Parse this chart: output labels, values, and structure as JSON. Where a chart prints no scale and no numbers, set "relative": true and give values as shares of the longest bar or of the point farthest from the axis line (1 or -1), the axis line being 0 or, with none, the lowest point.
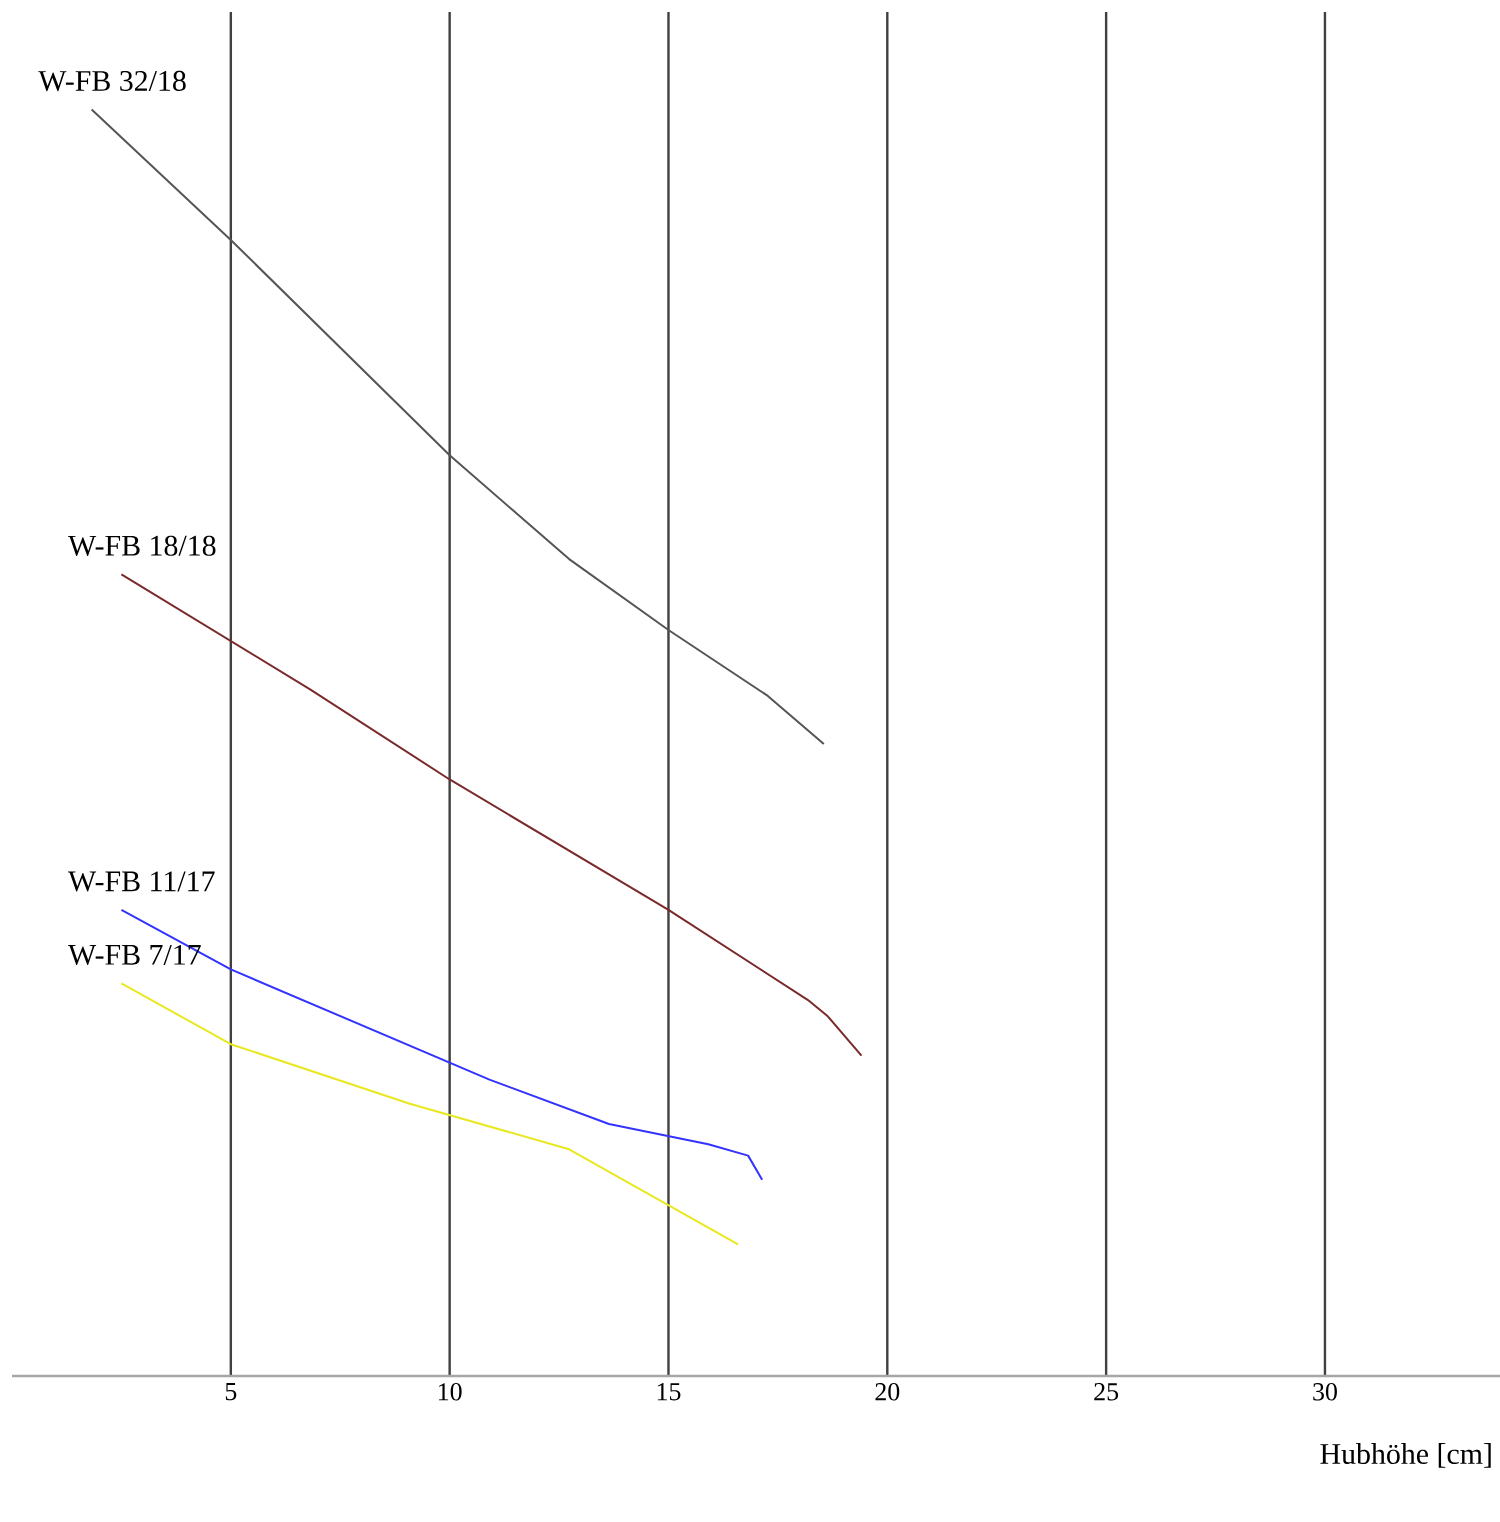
{
  "chart_data": {
    "type": "line",
    "relative": true,
    "xlabel": "Hubhöhe [cm]",
    "xlim": [
      0,
      34
    ],
    "xticks": [
      5,
      10,
      15,
      20,
      25,
      30
    ],
    "grid": true,
    "line_style": "solid",
    "series": [
      {
        "name": "W-FB 32/18",
        "color": "#555555",
        "x": [
          1.82,
          5,
          10,
          12.73,
          15,
          17.27,
          18.55
        ],
        "values": [
          1.0,
          0.897,
          0.727,
          0.645,
          0.589,
          0.537,
          0.499
        ]
      },
      {
        "name": "W-FB 18/18",
        "color": "#7a2a2a",
        "x": [
          2.5,
          6.82,
          10,
          15,
          18.18,
          18.64,
          19.41
        ],
        "values": [
          0.633,
          0.542,
          0.471,
          0.368,
          0.297,
          0.284,
          0.253
        ]
      },
      {
        "name": "W-FB 11/17",
        "color": "#3333ff",
        "x": [
          2.5,
          5,
          10.91,
          13.64,
          15.91,
          16.82,
          17.14
        ],
        "values": [
          0.368,
          0.321,
          0.234,
          0.199,
          0.183,
          0.174,
          0.155
        ]
      },
      {
        "name": "W-FB 7/17",
        "color": "#e8e820",
        "x": [
          2.5,
          5,
          9.09,
          12.73,
          16.59
        ],
        "values": [
          0.31,
          0.262,
          0.215,
          0.179,
          0.104
        ]
      }
    ]
  }
}
